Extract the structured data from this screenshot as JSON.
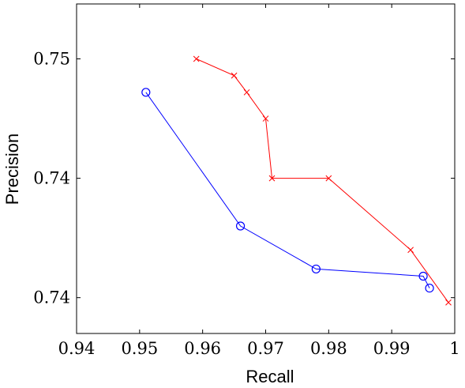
{
  "chart_data": {
    "type": "line",
    "title": "",
    "xlabel": "Recall",
    "ylabel": "Precision",
    "xlim": [
      0.94,
      1.0
    ],
    "ylim": [
      0.7385,
      0.7523
    ],
    "x_ticks": [
      0.94,
      0.95,
      0.96,
      0.97,
      0.98,
      0.99,
      1.0
    ],
    "x_tick_labels": [
      "0.94",
      "0.95",
      "0.96",
      "0.97",
      "0.98",
      "0.99",
      "1"
    ],
    "y_ticks": [
      0.75,
      0.745,
      0.74
    ],
    "y_tick_labels": [
      "0.75",
      "0.74",
      "0.74"
    ],
    "grid": false,
    "legend": "none",
    "series": [
      {
        "color": "#ff0000",
        "marker": "x",
        "points": [
          [
            0.959,
            0.75
          ],
          [
            0.965,
            0.7493
          ],
          [
            0.967,
            0.7486
          ],
          [
            0.97,
            0.7475
          ],
          [
            0.971,
            0.745
          ],
          [
            0.98,
            0.745
          ],
          [
            0.993,
            0.742
          ],
          [
            0.999,
            0.7398
          ]
        ]
      },
      {
        "color": "#0000ff",
        "marker": "o",
        "points": [
          [
            0.951,
            0.7486
          ],
          [
            0.966,
            0.743
          ],
          [
            0.978,
            0.7412
          ],
          [
            0.995,
            0.7409
          ],
          [
            0.996,
            0.7404
          ]
        ]
      }
    ]
  }
}
